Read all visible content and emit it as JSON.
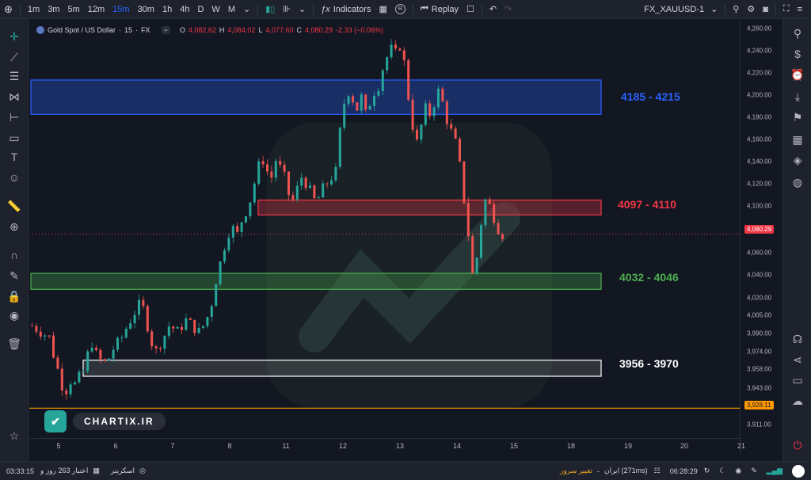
{
  "topbar": {
    "timeframes": [
      "1m",
      "3m",
      "5m",
      "12m",
      "15m",
      "30m",
      "1h",
      "4h",
      "D",
      "W",
      "M"
    ],
    "active_timeframe": "15m",
    "indicators_label": "Indicators",
    "r_badge": "R",
    "replay_label": "Replay",
    "symbol_selector": "FX_XAUUSD-1"
  },
  "legend": {
    "symbol": "Gold Spot / US Dollar",
    "interval": "15",
    "exchange": "FX",
    "open_label": "O",
    "open": "4,082.62",
    "high_label": "H",
    "high": "4,084.02",
    "low_label": "L",
    "low": "4,077.60",
    "close_label": "C",
    "close": "4,080.29",
    "change": "-2.33 (−0.06%)"
  },
  "colors": {
    "up": "#26a69a",
    "down": "#ef5350",
    "blue_zone": "#2962ff",
    "red_zone": "#f23645",
    "green_zone": "#4caf50",
    "white_zone": "#ffffff",
    "orange_line": "#ff9800"
  },
  "zones": [
    {
      "name": "blue",
      "low": 4185,
      "high": 4215,
      "label": "4185 - 4215",
      "color": "#2962ff"
    },
    {
      "name": "red",
      "low": 4097,
      "high": 4110,
      "label": "4097 - 4110",
      "color": "#f23645"
    },
    {
      "name": "green",
      "low": 4032,
      "high": 4046,
      "label": "4032 - 4046",
      "color": "#4caf50"
    },
    {
      "name": "white",
      "low": 3956,
      "high": 3970,
      "label": "3956 - 3970",
      "color": "#ffffff"
    }
  ],
  "price_axis": {
    "ticks": [
      "4,260.00",
      "4,240.00",
      "4,220.00",
      "4,200.00",
      "4,180.00",
      "4,160.00",
      "4,140.00",
      "4,120.00",
      "4,100.00",
      "4,080.00",
      "4,060.00",
      "4,040.00",
      "4,020.00",
      "4,005.00",
      "3,990.00",
      "3,974.00",
      "3,958.00",
      "3,943.00",
      "3,927.00",
      "3,911.00"
    ],
    "current_price": "4,080.29",
    "line_price": "3,928.11"
  },
  "time_axis": {
    "ticks": [
      "5",
      "6",
      "7",
      "8",
      "11",
      "12",
      "13",
      "14",
      "15",
      "18",
      "19",
      "20",
      "21"
    ]
  },
  "brand": {
    "logo_text": "✔",
    "name": "CHARTIX.IR"
  },
  "bottombar": {
    "time": "03:33:15",
    "credit": "اعتبار 263 روز و",
    "screener": "اسکرینر",
    "server_change": "تغییر سرور",
    "server": "ایران (271ms)",
    "clock": "06:28:29"
  },
  "chart_data": {
    "type": "candlestick",
    "instrument": "Gold Spot / US Dollar",
    "interval": "15",
    "x_ticks": [
      "5",
      "6",
      "7",
      "8",
      "11",
      "12",
      "13",
      "14",
      "15",
      "18",
      "19",
      "20",
      "21"
    ],
    "ylim": [
      3905,
      4268
    ],
    "close_path": [
      [
        0,
        4000
      ],
      [
        2,
        3995
      ],
      [
        4,
        3990
      ],
      [
        5,
        3975
      ],
      [
        6,
        3962
      ],
      [
        7,
        3948
      ],
      [
        8,
        3944
      ],
      [
        9,
        3952
      ],
      [
        10,
        3949
      ],
      [
        11,
        3955
      ],
      [
        12,
        3960
      ],
      [
        13,
        3975
      ],
      [
        14,
        3985
      ],
      [
        15,
        3975
      ],
      [
        16,
        3970
      ],
      [
        17,
        3968
      ],
      [
        18,
        3972
      ],
      [
        19,
        3980
      ],
      [
        20,
        3985
      ],
      [
        21,
        3990
      ],
      [
        22,
        3998
      ],
      [
        23,
        4005
      ],
      [
        24,
        4012
      ],
      [
        25,
        4018
      ],
      [
        26,
        4015
      ],
      [
        27,
        4000
      ],
      [
        28,
        3985
      ],
      [
        29,
        3978
      ],
      [
        30,
        3985
      ],
      [
        31,
        3992
      ],
      [
        32,
        4000
      ],
      [
        33,
        3998
      ],
      [
        34,
        3995
      ],
      [
        35,
        4000
      ],
      [
        36,
        4005
      ],
      [
        37,
        4002
      ],
      [
        38,
        3998
      ],
      [
        39,
        3995
      ],
      [
        40,
        4000
      ],
      [
        41,
        4008
      ],
      [
        42,
        4020
      ],
      [
        43,
        4040
      ],
      [
        44,
        4055
      ],
      [
        45,
        4070
      ],
      [
        46,
        4082
      ],
      [
        47,
        4085
      ],
      [
        48,
        4080
      ],
      [
        49,
        4092
      ],
      [
        50,
        4100
      ],
      [
        51,
        4110
      ],
      [
        52,
        4125
      ],
      [
        53,
        4140
      ],
      [
        54,
        4145
      ],
      [
        55,
        4135
      ],
      [
        56,
        4130
      ],
      [
        57,
        4145
      ],
      [
        58,
        4138
      ],
      [
        59,
        4130
      ],
      [
        60,
        4115
      ],
      [
        61,
        4110
      ],
      [
        62,
        4120
      ],
      [
        63,
        4130
      ],
      [
        64,
        4125
      ],
      [
        65,
        4118
      ],
      [
        66,
        4110
      ],
      [
        67,
        4112
      ],
      [
        68,
        4120
      ],
      [
        69,
        4125
      ],
      [
        70,
        4130
      ],
      [
        71,
        4135
      ],
      [
        72,
        4170
      ],
      [
        73,
        4195
      ],
      [
        74,
        4205
      ],
      [
        75,
        4198
      ],
      [
        76,
        4190
      ],
      [
        77,
        4200
      ],
      [
        78,
        4185
      ],
      [
        79,
        4195
      ],
      [
        80,
        4205
      ],
      [
        81,
        4210
      ],
      [
        82,
        4225
      ],
      [
        83,
        4235
      ],
      [
        84,
        4242
      ],
      [
        85,
        4238
      ],
      [
        86,
        4245
      ],
      [
        87,
        4230
      ],
      [
        88,
        4200
      ],
      [
        89,
        4175
      ],
      [
        90,
        4160
      ],
      [
        91,
        4175
      ],
      [
        92,
        4190
      ],
      [
        93,
        4185
      ],
      [
        94,
        4195
      ],
      [
        95,
        4205
      ],
      [
        96,
        4195
      ],
      [
        97,
        4180
      ],
      [
        98,
        4170
      ],
      [
        99,
        4160
      ],
      [
        100,
        4140
      ],
      [
        101,
        4110
      ],
      [
        102,
        4080
      ],
      [
        103,
        4045
      ],
      [
        104,
        4060
      ],
      [
        105,
        4090
      ],
      [
        106,
        4110
      ],
      [
        107,
        4105
      ],
      [
        108,
        4095
      ],
      [
        109,
        4085
      ],
      [
        110,
        4080
      ]
    ]
  }
}
